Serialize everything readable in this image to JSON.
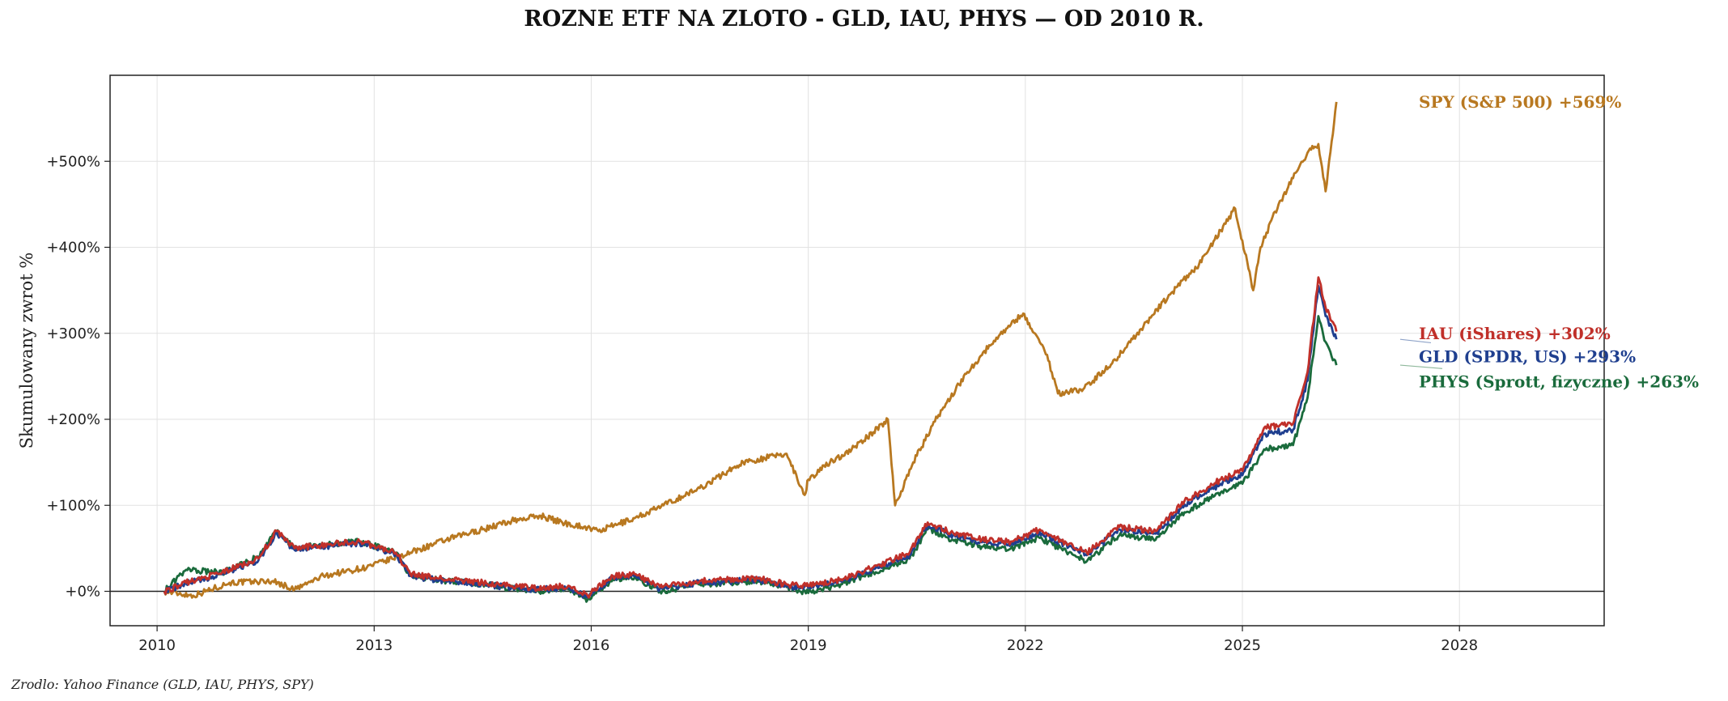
{
  "title": "ROZNE ETF NA ZLOTO - GLD, IAU, PHYS — OD 2010 R.",
  "source_note": "Zrodlo: Yahoo Finance (GLD, IAU, PHYS, SPY)",
  "chart_data": {
    "type": "line",
    "title": "ROZNE ETF NA ZLOTO - GLD, IAU, PHYS — OD 2010 R.",
    "xlabel": "",
    "ylabel": "Skumulowany zwrot %",
    "xlim": [
      2009.35,
      2030.0
    ],
    "ylim": [
      -40,
      600
    ],
    "x_ticks": [
      2010,
      2013,
      2016,
      2019,
      2022,
      2025,
      2028
    ],
    "x_tick_labels": [
      "2010",
      "2013",
      "2016",
      "2019",
      "2022",
      "2025",
      "2028"
    ],
    "y_ticks": [
      0,
      100,
      200,
      300,
      400,
      500
    ],
    "y_tick_labels": [
      "+0%",
      "+100%",
      "+200%",
      "+300%",
      "+400%",
      "+500%"
    ],
    "grid": true,
    "zero_line": true,
    "legend": "end-of-line labels",
    "series": [
      {
        "name": "SPY (S&P 500)",
        "end_label": "SPY (S&P 500)  +569%",
        "color": "#b87820",
        "x": [
          2010.1,
          2010.5,
          2011.0,
          2011.6,
          2011.9,
          2012.3,
          2012.9,
          2013.5,
          2014.0,
          2014.5,
          2014.9,
          2015.3,
          2015.6,
          2015.9,
          2016.1,
          2016.6,
          2017.0,
          2017.5,
          2017.9,
          2018.1,
          2018.7,
          2018.95,
          2019.0,
          2019.3,
          2019.6,
          2019.9,
          2020.1,
          2020.2,
          2020.45,
          2020.8,
          2021.2,
          2021.6,
          2021.97,
          2022.3,
          2022.45,
          2022.8,
          2023.2,
          2023.6,
          2024.0,
          2024.4,
          2024.9,
          2025.15,
          2025.25,
          2025.5,
          2025.9,
          2026.05,
          2026.15,
          2026.3
        ],
        "values": [
          0,
          -5,
          10,
          12,
          2,
          18,
          28,
          45,
          60,
          72,
          82,
          88,
          80,
          75,
          70,
          85,
          100,
          120,
          140,
          150,
          160,
          112,
          130,
          150,
          165,
          185,
          200,
          100,
          150,
          205,
          255,
          295,
          323,
          275,
          230,
          235,
          265,
          305,
          345,
          380,
          445,
          350,
          400,
          450,
          510,
          520,
          465,
          569
        ]
      },
      {
        "name": "IAU (iShares)",
        "end_label": "IAU (iShares)  +302%",
        "color": "#c0302a",
        "x": [
          2010.1,
          2010.4,
          2010.9,
          2011.4,
          2011.65,
          2011.9,
          2012.4,
          2012.8,
          2013.3,
          2013.5,
          2013.9,
          2014.5,
          2015.2,
          2015.7,
          2015.95,
          2016.3,
          2016.6,
          2016.95,
          2017.5,
          2018.3,
          2018.7,
          2019.0,
          2019.5,
          2019.9,
          2020.4,
          2020.65,
          2021.0,
          2021.4,
          2021.8,
          2022.2,
          2022.6,
          2022.85,
          2023.3,
          2023.8,
          2024.2,
          2024.7,
          2025.0,
          2025.3,
          2025.7,
          2025.9,
          2026.05,
          2026.15,
          2026.3
        ],
        "values": [
          0,
          10,
          22,
          38,
          70,
          50,
          55,
          58,
          45,
          20,
          15,
          10,
          4,
          6,
          -5,
          18,
          20,
          5,
          12,
          15,
          8,
          6,
          15,
          28,
          45,
          80,
          68,
          60,
          58,
          72,
          55,
          45,
          75,
          70,
          105,
          130,
          140,
          190,
          195,
          255,
          365,
          330,
          302
        ]
      },
      {
        "name": "GLD (SPDR, US)",
        "end_label": "GLD (SPDR, US)  +293%",
        "color": "#1f3f8f",
        "x": [
          2010.1,
          2010.4,
          2010.9,
          2011.4,
          2011.65,
          2011.9,
          2012.4,
          2012.8,
          2013.3,
          2013.5,
          2013.9,
          2014.5,
          2015.2,
          2015.7,
          2015.95,
          2016.3,
          2016.6,
          2016.95,
          2017.5,
          2018.3,
          2018.7,
          2019.0,
          2019.5,
          2019.9,
          2020.4,
          2020.65,
          2021.0,
          2021.4,
          2021.8,
          2022.2,
          2022.6,
          2022.85,
          2023.3,
          2023.8,
          2024.2,
          2024.7,
          2025.0,
          2025.3,
          2025.7,
          2025.9,
          2026.05,
          2026.15,
          2026.3
        ],
        "values": [
          0,
          9,
          20,
          36,
          68,
          48,
          53,
          56,
          43,
          18,
          13,
          8,
          2,
          4,
          -7,
          16,
          18,
          3,
          10,
          13,
          6,
          4,
          13,
          26,
          42,
          77,
          65,
          57,
          55,
          69,
          52,
          42,
          72,
          67,
          101,
          125,
          135,
          183,
          188,
          245,
          355,
          320,
          293
        ]
      },
      {
        "name": "PHYS (Sprott, fizyczne)",
        "end_label": "PHYS (Sprott, fizyczne)  +263%",
        "color": "#1a6b3c",
        "x": [
          2010.1,
          2010.4,
          2010.9,
          2011.4,
          2011.65,
          2011.9,
          2012.4,
          2012.8,
          2013.3,
          2013.5,
          2013.9,
          2014.5,
          2015.2,
          2015.7,
          2015.95,
          2016.3,
          2016.6,
          2016.95,
          2017.5,
          2018.3,
          2018.7,
          2019.0,
          2019.5,
          2019.9,
          2020.4,
          2020.65,
          2021.0,
          2021.4,
          2021.8,
          2022.2,
          2022.6,
          2022.85,
          2023.3,
          2023.8,
          2024.2,
          2024.7,
          2025.0,
          2025.3,
          2025.7,
          2025.9,
          2026.05,
          2026.15,
          2026.3
        ],
        "values": [
          0,
          25,
          22,
          40,
          70,
          50,
          55,
          58,
          45,
          18,
          13,
          8,
          0,
          3,
          -10,
          14,
          16,
          0,
          8,
          12,
          5,
          -2,
          10,
          22,
          38,
          72,
          60,
          52,
          50,
          62,
          45,
          35,
          65,
          60,
          92,
          115,
          125,
          165,
          170,
          225,
          320,
          290,
          263
        ]
      }
    ]
  }
}
